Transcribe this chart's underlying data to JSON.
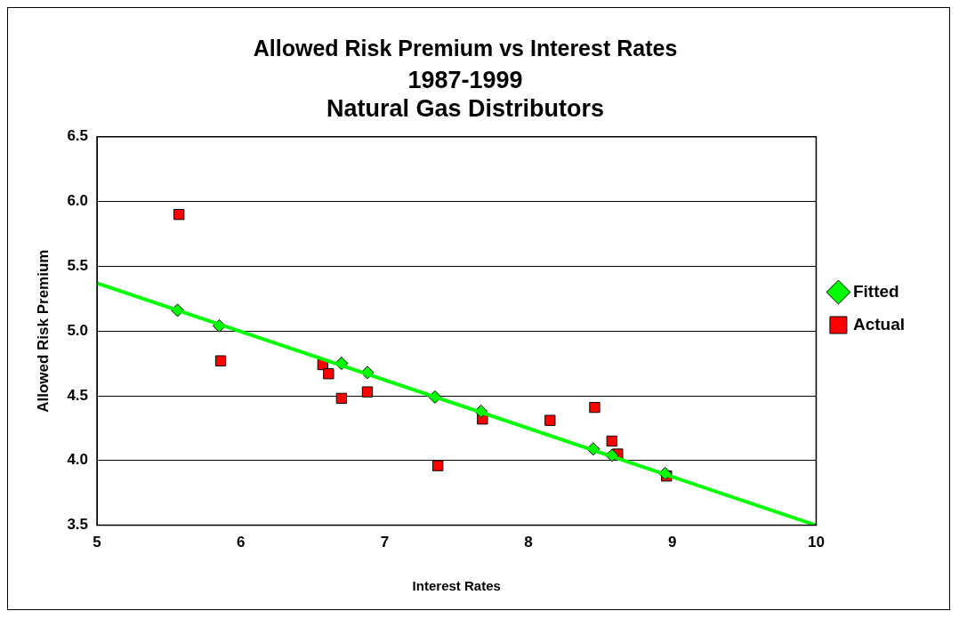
{
  "chart_data": {
    "type": "scatter",
    "title": "Allowed Risk Premium vs Interest Rates",
    "subtitle": [
      "1987-1999",
      "Natural Gas Distributors"
    ],
    "xlabel": "Interest Rates",
    "ylabel": "Allowed Risk Premium",
    "xlim": [
      5,
      10
    ],
    "xticks": [
      5,
      6,
      7,
      8,
      9,
      10
    ],
    "ylim": [
      3.5,
      6.5
    ],
    "yticks": [
      3.5,
      {
        "value": 4,
        "label": "4.0"
      },
      4.5,
      {
        "value": 5,
        "label": "5.0"
      },
      5.5,
      {
        "value": 6,
        "label": "6.0"
      },
      6.5
    ],
    "grid": "y",
    "legend": "right",
    "series": [
      {
        "name": "Actual",
        "type": "scatter",
        "marker": "square",
        "color": "#ff0000",
        "x": [
          5.57,
          5.86,
          6.57,
          6.61,
          6.7,
          6.88,
          7.37,
          7.68,
          8.15,
          8.46,
          8.58,
          8.62,
          8.96
        ],
        "values": [
          5.9,
          4.77,
          4.74,
          4.67,
          4.48,
          4.53,
          3.96,
          4.32,
          4.31,
          4.41,
          4.15,
          4.05,
          3.88
        ]
      },
      {
        "name": "Fitted",
        "type": "scatter",
        "marker": "diamond",
        "color": "#00ff00",
        "x": [
          5.56,
          5.85,
          6.7,
          6.88,
          7.35,
          7.67,
          8.45,
          8.58,
          8.95
        ],
        "values": [
          5.16,
          5.04,
          4.75,
          4.68,
          4.49,
          4.38,
          4.09,
          4.04,
          3.9
        ]
      },
      {
        "type": "line",
        "marker": "none",
        "color": "#00ff00",
        "x": [
          5,
          10
        ],
        "values": [
          5.37,
          3.5
        ]
      }
    ]
  }
}
